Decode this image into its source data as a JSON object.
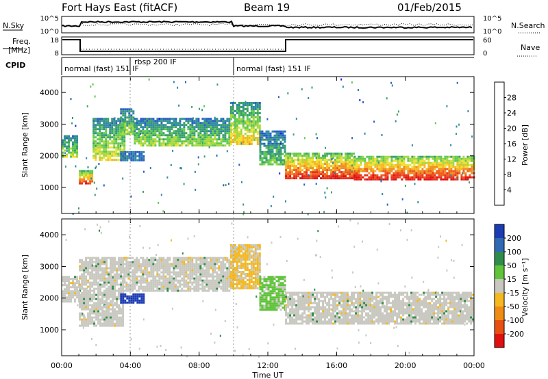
{
  "header": {
    "title": "Fort Hays East (fitACF)",
    "beam": "Beam 19",
    "date": "01/Feb/2015"
  },
  "top_panels": {
    "nsky_label": "N.Sky",
    "nsky_ticks": [
      "10^5",
      "10^0"
    ],
    "nsearch_label": "N.Search",
    "nsearch_ticks": [
      "10^5",
      "10^0"
    ],
    "freq_label_line1": "Freq.",
    "freq_label_line2": "[MHz]",
    "freq_ticks": [
      "18",
      "8"
    ],
    "nave_label": "Nave",
    "nave_ticks": [
      "60",
      "0"
    ],
    "cpid_label": "CPID",
    "cpid_segments": [
      "normal (fast) 151 IF",
      "rbsp 200 IF",
      "normal (fast) 151 IF"
    ]
  },
  "chart_data": [
    {
      "type": "heatmap",
      "panel": "power",
      "ylabel": "Slant Range [km]",
      "xlabel": "",
      "ylim": [
        180,
        4500
      ],
      "yticks": [
        "1000",
        "2000",
        "3000",
        "4000"
      ],
      "colorbar": {
        "label": "Power [dB]",
        "ticks": [
          "4",
          "8",
          "12",
          "16",
          "20",
          "24",
          "28"
        ],
        "colors": [
          "#1e28dc",
          "#2a5fc8",
          "#2f8aa0",
          "#3aa06a",
          "#5fc850",
          "#a6d83c",
          "#f0e030",
          "#f5b820",
          "#f08c1e",
          "#ee5a1c",
          "#e83018",
          "#e01010"
        ]
      },
      "echo_bands": [
        {
          "start_hr": 0.0,
          "end_hr": 0.9,
          "lower_km": 2000,
          "upper_km": 2650,
          "power_db": 14
        },
        {
          "start_hr": 1.0,
          "end_hr": 1.8,
          "lower_km": 1150,
          "upper_km": 1550,
          "power_db": 26
        },
        {
          "start_hr": 1.8,
          "end_hr": 3.6,
          "lower_km": 1900,
          "upper_km": 3200,
          "power_db": 16
        },
        {
          "start_hr": 3.4,
          "end_hr": 4.2,
          "lower_km": 2700,
          "upper_km": 3500,
          "power_db": 14
        },
        {
          "start_hr": 4.2,
          "end_hr": 9.8,
          "lower_km": 2300,
          "upper_km": 3200,
          "power_db": 14
        },
        {
          "start_hr": 9.8,
          "end_hr": 11.5,
          "lower_km": 2400,
          "upper_km": 3700,
          "power_db": 18
        },
        {
          "start_hr": 11.5,
          "end_hr": 13.0,
          "lower_km": 1700,
          "upper_km": 2800,
          "power_db": 12
        },
        {
          "start_hr": 13.0,
          "end_hr": 17.0,
          "lower_km": 1300,
          "upper_km": 2100,
          "power_db": 27
        },
        {
          "start_hr": 17.0,
          "end_hr": 24.0,
          "lower_km": 1250,
          "upper_km": 2000,
          "power_db": 28
        }
      ],
      "patch": {
        "start_hr": 3.4,
        "end_hr": 4.8,
        "lower_km": 1850,
        "upper_km": 2150,
        "power_db": 6
      }
    },
    {
      "type": "heatmap",
      "panel": "velocity",
      "ylabel": "Slant Range [km]",
      "xlabel": "Time UT",
      "ylim": [
        180,
        4500
      ],
      "yticks": [
        "1000",
        "2000",
        "3000",
        "4000"
      ],
      "xlim": [
        0,
        24
      ],
      "xticks": [
        "00:00",
        "04:00",
        "08:00",
        "12:00",
        "16:00",
        "20:00",
        "00:00"
      ],
      "colorbar": {
        "label": "Velocity [m s⁻¹]",
        "ticks": [
          "200",
          "100",
          "50",
          "15",
          "-15",
          "-50",
          "-100",
          "-200"
        ],
        "colors": [
          "#1c3cb4",
          "#2f6ab4",
          "#2f8c4a",
          "#5fc43a",
          "#c8c8c0",
          "#f5b81e",
          "#f08c14",
          "#e85012",
          "#e01010"
        ]
      },
      "echo_bands": [
        {
          "start_hr": 0.0,
          "end_hr": 1.0,
          "lower_km": 1900,
          "upper_km": 2700,
          "velocity": 0
        },
        {
          "start_hr": 1.0,
          "end_hr": 3.6,
          "lower_km": 1150,
          "upper_km": 3300,
          "velocity": 0
        },
        {
          "start_hr": 3.6,
          "end_hr": 9.8,
          "lower_km": 2200,
          "upper_km": 3300,
          "velocity": 0
        },
        {
          "start_hr": 9.8,
          "end_hr": 11.5,
          "lower_km": 2300,
          "upper_km": 3700,
          "velocity": -30
        },
        {
          "start_hr": 11.5,
          "end_hr": 13.0,
          "lower_km": 1600,
          "upper_km": 2700,
          "velocity": 45
        },
        {
          "start_hr": 13.0,
          "end_hr": 24.0,
          "lower_km": 1200,
          "upper_km": 2200,
          "velocity": 0
        }
      ],
      "patch": {
        "start_hr": 3.4,
        "end_hr": 4.8,
        "lower_km": 1850,
        "upper_km": 2150,
        "velocity": 200
      }
    }
  ]
}
